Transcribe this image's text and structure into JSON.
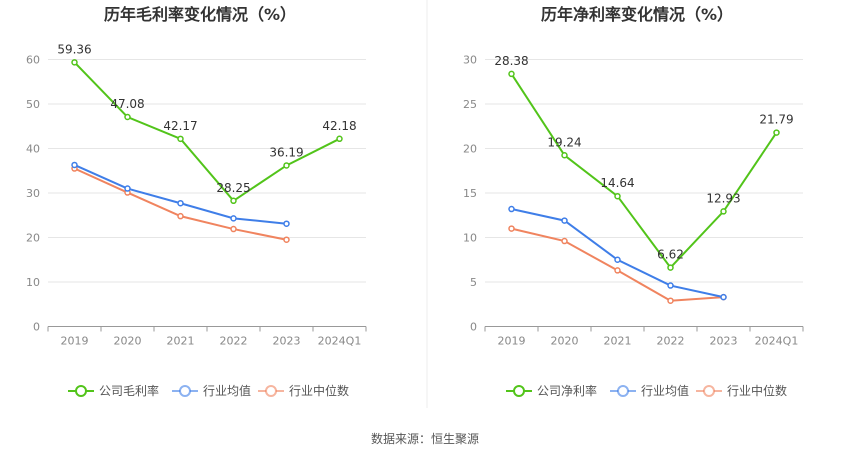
{
  "source": "数据来源：恒生聚源",
  "chart_data": [
    {
      "type": "line",
      "title": "历年毛利率变化情况（%）",
      "categories": [
        "2019",
        "2020",
        "2021",
        "2022",
        "2023",
        "2024Q1"
      ],
      "ylim": [
        0,
        60
      ],
      "yticks": [
        0,
        10,
        20,
        30,
        40,
        50,
        60
      ],
      "grid": true,
      "legend_position": "bottom",
      "series": [
        {
          "name": "公司毛利率",
          "color": "#52c41a",
          "values": [
            59.36,
            47.08,
            42.17,
            28.25,
            36.19,
            42.18
          ],
          "labels": [
            "59.36",
            "47.08",
            "42.17",
            "28.25",
            "36.19",
            "42.18"
          ]
        },
        {
          "name": "行业均值",
          "color": "#3f7ee8",
          "values": [
            36.3,
            31.0,
            27.7,
            24.3,
            23.1,
            null
          ]
        },
        {
          "name": "行业中位数",
          "color": "#f0845f",
          "values": [
            35.5,
            30.1,
            24.8,
            21.9,
            19.5,
            null
          ]
        }
      ]
    },
    {
      "type": "line",
      "title": "历年净利率变化情况（%）",
      "categories": [
        "2019",
        "2020",
        "2021",
        "2022",
        "2023",
        "2024Q1"
      ],
      "ylim": [
        0,
        30
      ],
      "yticks": [
        0,
        5,
        10,
        15,
        20,
        25,
        30
      ],
      "grid": true,
      "legend_position": "bottom",
      "series": [
        {
          "name": "公司净利率",
          "color": "#52c41a",
          "values": [
            28.38,
            19.24,
            14.64,
            6.62,
            12.93,
            21.79
          ],
          "labels": [
            "28.38",
            "19.24",
            "14.64",
            "6.62",
            "12.93",
            "21.79"
          ]
        },
        {
          "name": "行业均值",
          "color": "#3f7ee8",
          "values": [
            13.2,
            11.9,
            7.5,
            4.6,
            3.3,
            null
          ]
        },
        {
          "name": "行业中位数",
          "color": "#f0845f",
          "values": [
            11.0,
            9.6,
            6.3,
            2.9,
            3.3,
            null
          ]
        }
      ]
    }
  ]
}
